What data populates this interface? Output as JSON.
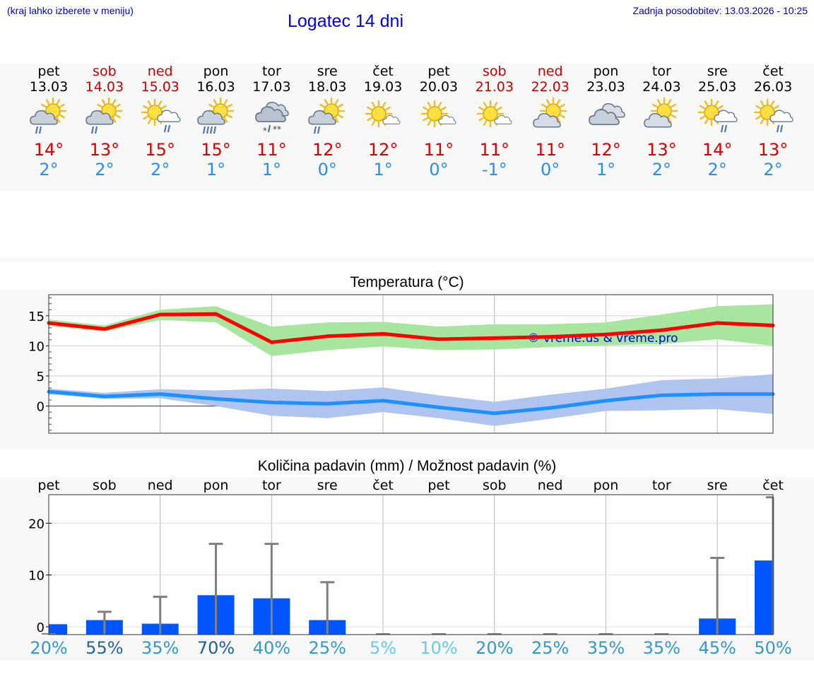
{
  "header": {
    "hint": "(kraj lahko izberete v meniju)",
    "title": "Logatec 14 dni",
    "updated": "Zadnja posodobitev: 13.03.2026 - 10:25"
  },
  "days": [
    {
      "name": "pet",
      "date": "13.03",
      "weekend": false,
      "icon": "sun-cloud-rain-icon",
      "max": "14°",
      "min": "2°"
    },
    {
      "name": "sob",
      "date": "14.03",
      "weekend": true,
      "icon": "sun-cloud-rain-icon",
      "max": "13°",
      "min": "2°"
    },
    {
      "name": "ned",
      "date": "15.03",
      "weekend": true,
      "icon": "sun-cloud-light-rain-icon",
      "max": "15°",
      "min": "2°"
    },
    {
      "name": "pon",
      "date": "16.03",
      "weekend": false,
      "icon": "sun-cloud-heavy-rain-icon",
      "max": "15°",
      "min": "1°"
    },
    {
      "name": "tor",
      "date": "17.03",
      "weekend": false,
      "icon": "cloud-rain-snow-icon",
      "max": "11°",
      "min": "1°"
    },
    {
      "name": "sre",
      "date": "18.03",
      "weekend": false,
      "icon": "sun-cloud-rain-icon",
      "max": "12°",
      "min": "0°"
    },
    {
      "name": "čet",
      "date": "19.03",
      "weekend": false,
      "icon": "sun-small-cloud-icon",
      "max": "12°",
      "min": "1°"
    },
    {
      "name": "pet",
      "date": "20.03",
      "weekend": false,
      "icon": "sun-small-cloud-icon",
      "max": "11°",
      "min": "0°"
    },
    {
      "name": "sob",
      "date": "21.03",
      "weekend": true,
      "icon": "sun-small-cloud-icon",
      "max": "11°",
      "min": "-1°"
    },
    {
      "name": "ned",
      "date": "22.03",
      "weekend": true,
      "icon": "sun-behind-cloud-icon",
      "max": "11°",
      "min": "0°"
    },
    {
      "name": "pon",
      "date": "23.03",
      "weekend": false,
      "icon": "cloudy-icon",
      "max": "12°",
      "min": "1°"
    },
    {
      "name": "tor",
      "date": "24.03",
      "weekend": false,
      "icon": "sun-behind-cloud-icon",
      "max": "13°",
      "min": "2°"
    },
    {
      "name": "sre",
      "date": "25.03",
      "weekend": false,
      "icon": "sun-cloud-light-rain-icon",
      "max": "14°",
      "min": "2°"
    },
    {
      "name": "čet",
      "date": "26.03",
      "weekend": false,
      "icon": "sun-cloud-light-rain-icon",
      "max": "13°",
      "min": "2°"
    }
  ],
  "colors": {
    "weekend": "#cc0000",
    "weekday": "#000000",
    "max_line": "#ff0000",
    "max_band": "#a8e6a0",
    "min_line": "#1e90ff",
    "min_band": "#b0c4f0",
    "precip_bar": "#0055ff",
    "error_bar": "#808080"
  },
  "chart_data": [
    {
      "type": "line",
      "title": "Temperatura (°C)",
      "watermark": "© vreme.us & vreme.pro",
      "categories": [
        "13.03",
        "14.03",
        "15.03",
        "16.03",
        "17.03",
        "18.03",
        "19.03",
        "20.03",
        "21.03",
        "22.03",
        "23.03",
        "24.03",
        "25.03",
        "26.03"
      ],
      "yticks": [
        0,
        5,
        10,
        15
      ],
      "ytick_labels": [
        "0",
        "5",
        "10",
        "15"
      ],
      "ylim": [
        -4.5,
        18.5
      ],
      "grid": true,
      "series": [
        {
          "name": "max",
          "values": [
            13.8,
            12.8,
            15.2,
            15.3,
            10.6,
            11.6,
            12.0,
            11.1,
            11.3,
            11.5,
            11.9,
            12.6,
            13.8,
            13.4
          ],
          "band_low": [
            13.3,
            12.4,
            14.3,
            13.9,
            8.3,
            9.3,
            9.9,
            9.3,
            9.4,
            9.8,
            10.1,
            10.3,
            11.1,
            10.0
          ],
          "band_high": [
            14.4,
            13.4,
            16.0,
            16.6,
            13.2,
            13.9,
            14.0,
            13.2,
            13.6,
            13.6,
            13.9,
            15.2,
            16.6,
            16.9
          ]
        },
        {
          "name": "min",
          "values": [
            2.4,
            1.6,
            2.0,
            1.2,
            0.6,
            0.4,
            0.9,
            -0.2,
            -1.2,
            -0.3,
            0.9,
            1.8,
            2.0,
            2.0
          ],
          "band_low": [
            2.0,
            1.2,
            1.3,
            0.0,
            -1.6,
            -2.0,
            -1.0,
            -2.0,
            -3.3,
            -2.1,
            -0.8,
            -0.7,
            -0.5,
            -1.3
          ],
          "band_high": [
            2.9,
            2.2,
            2.8,
            2.6,
            2.9,
            2.5,
            3.1,
            1.8,
            0.7,
            1.9,
            2.9,
            4.3,
            4.6,
            5.3
          ]
        }
      ]
    },
    {
      "type": "bar",
      "title": "Količina padavin (mm) / Možnost padavin (%)",
      "categories": [
        "pet",
        "sob",
        "ned",
        "pon",
        "tor",
        "sre",
        "čet",
        "pet",
        "sob",
        "ned",
        "pon",
        "tor",
        "sre",
        "čet"
      ],
      "yticks": [
        0,
        10,
        20
      ],
      "ytick_labels": [
        "0",
        "10",
        "20"
      ],
      "ylim": [
        -1.5,
        25.5
      ],
      "values": [
        0.5,
        1.3,
        0.6,
        6.1,
        5.5,
        1.3,
        0,
        0,
        0,
        0,
        0,
        0,
        1.6,
        12.8
      ],
      "error_high": [
        0,
        2.9,
        5.8,
        16.0,
        16.0,
        8.6,
        0,
        0,
        0,
        0,
        0,
        0,
        13.3,
        25.0
      ],
      "probability": [
        "20%",
        "55%",
        "35%",
        "70%",
        "40%",
        "25%",
        "5%",
        "10%",
        "20%",
        "25%",
        "35%",
        "35%",
        "45%",
        "50%"
      ],
      "probability_colors": [
        "#3399cc",
        "#226699",
        "#3399cc",
        "#1a5fa0",
        "#3399cc",
        "#3399cc",
        "#66ccee",
        "#66ccee",
        "#3399cc",
        "#3399cc",
        "#3399cc",
        "#3399cc",
        "#3399cc",
        "#3399cc"
      ]
    }
  ]
}
